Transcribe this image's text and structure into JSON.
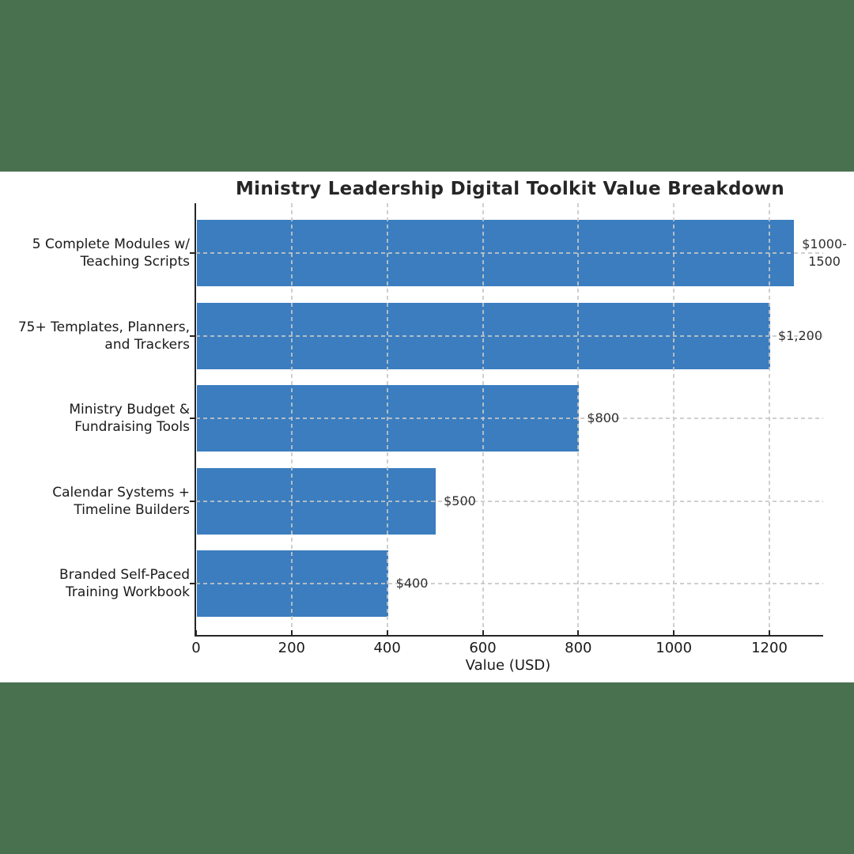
{
  "page": {
    "letterbox_color": "#497150",
    "plot_background": "#ffffff"
  },
  "chart_data": {
    "type": "bar",
    "orientation": "horizontal",
    "title": "Ministry Leadership Digital Toolkit Value Breakdown",
    "xlabel": "Value (USD)",
    "ylabel": "",
    "categories": [
      "5 Complete Modules w/ Teaching Scripts",
      "75+ Templates, Planners, and Trackers",
      "Ministry Budget & Fundraising Tools",
      "Calendar Systems + Timeline Builders",
      "Branded Self-Paced Training Workbook"
    ],
    "category_lines": [
      [
        "5 Complete Modules w/",
        "Teaching Scripts"
      ],
      [
        "75+ Templates, Planners,",
        "and Trackers"
      ],
      [
        "Ministry Budget &",
        "Fundraising Tools"
      ],
      [
        "Calendar Systems +",
        "Timeline Builders"
      ],
      [
        "Branded Self-Paced",
        "Training Workbook"
      ]
    ],
    "values": [
      1250,
      1200,
      800,
      500,
      400
    ],
    "value_labels": [
      [
        "$1000-",
        "1500"
      ],
      [
        "$1,200"
      ],
      [
        "$800"
      ],
      [
        "$500"
      ],
      [
        "$400"
      ]
    ],
    "x_ticks": [
      0,
      200,
      400,
      600,
      800,
      1000,
      1200
    ],
    "xlim": [
      0,
      1312.5
    ],
    "bar_color": "#3b7dbf",
    "grid": true,
    "grid_style": "dashed",
    "legend_position": "none"
  }
}
